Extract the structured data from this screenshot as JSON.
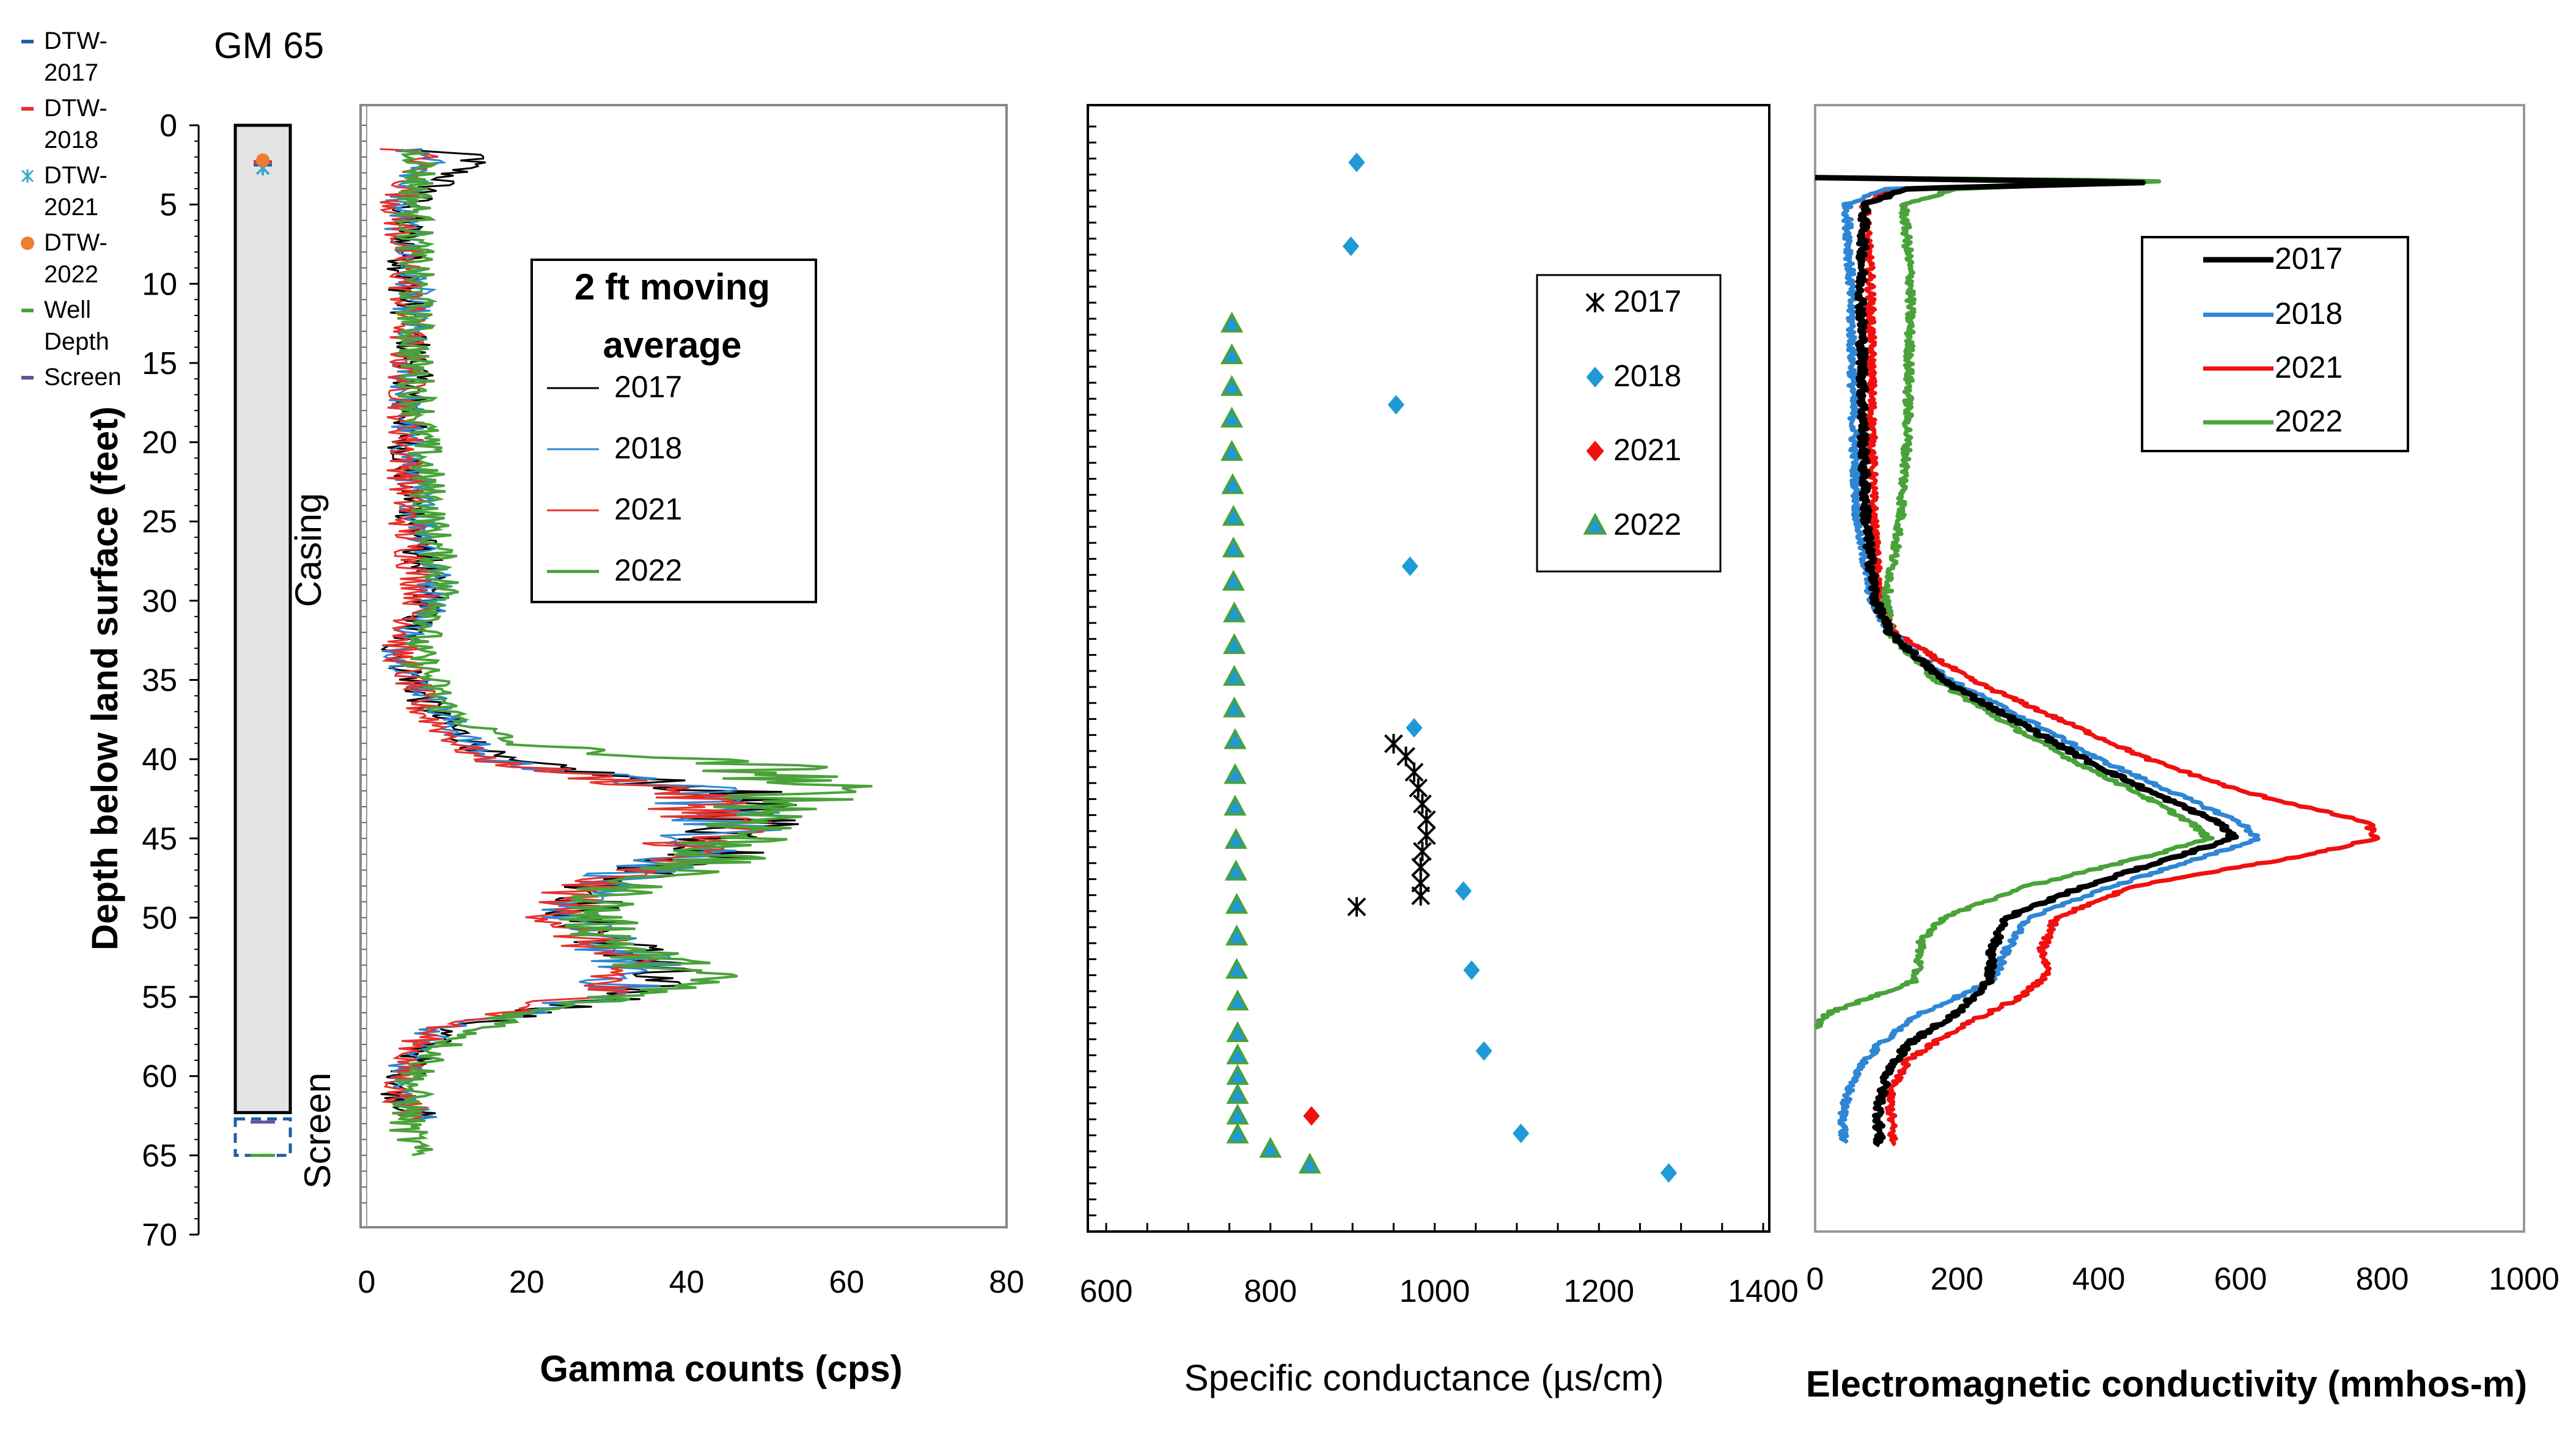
{
  "chart_data": [
    {
      "type": "well-diagram",
      "title": "GM 65",
      "ylabel": "Depth below land surface (feet)",
      "yticks": [
        "0",
        "5",
        "10",
        "15",
        "20",
        "25",
        "30",
        "35",
        "40",
        "45",
        "50",
        "55",
        "60",
        "65",
        "70"
      ],
      "ylim": [
        0,
        70
      ],
      "casing_label": "Casing",
      "screen_label": "Screen",
      "casing_depth": [
        0,
        62.3
      ],
      "screen_depth": [
        62.7,
        65
      ],
      "well_depth": 65,
      "legend": [
        {
          "label": "DTW-\n2017",
          "color": "#1f5fa8",
          "marker": "dash"
        },
        {
          "label": "DTW-\n2018",
          "color": "#e8302a",
          "marker": "dash"
        },
        {
          "label": "DTW-\n2021",
          "color": "#3aa6c8",
          "marker": "asterisk"
        },
        {
          "label": "DTW-\n2022",
          "color": "#ee7d31",
          "marker": "circle"
        },
        {
          "label": "Well\nDepth",
          "color": "#4aa23a",
          "marker": "dash"
        },
        {
          "label": "Screen",
          "color": "#6b4f9a",
          "marker": "dash"
        }
      ],
      "dtw": [
        {
          "year": "2017",
          "depth": 2.5
        },
        {
          "year": "2018",
          "depth": 2.3
        },
        {
          "year": "2021",
          "depth": 2.7
        },
        {
          "year": "2022",
          "depth": 2.4
        }
      ]
    },
    {
      "type": "line",
      "xlabel": "Gamma counts (cps)",
      "xlim": [
        0,
        80
      ],
      "xticks": [
        "0",
        "20",
        "40",
        "60",
        "80"
      ],
      "legend_title": "2 ft moving\naverage",
      "series": [
        {
          "name": "2017",
          "color": "#000000",
          "profile": [
            [
              1.5,
              6
            ],
            [
              2,
              14
            ],
            [
              5,
              5
            ],
            [
              10,
              5
            ],
            [
              15,
              6
            ],
            [
              20,
              5
            ],
            [
              25,
              6
            ],
            [
              30,
              8
            ],
            [
              33,
              4
            ],
            [
              37,
              8
            ],
            [
              40,
              16
            ],
            [
              42,
              44
            ],
            [
              44,
              48
            ],
            [
              46,
              44
            ],
            [
              48,
              30
            ],
            [
              50,
              26
            ],
            [
              53,
              36
            ],
            [
              55,
              32
            ],
            [
              57,
              10
            ],
            [
              59,
              6
            ],
            [
              61,
              4
            ],
            [
              62.8,
              7
            ]
          ]
        },
        {
          "name": "2018",
          "color": "#2e86d4",
          "profile": [
            [
              1.5,
              5
            ],
            [
              2,
              8
            ],
            [
              5,
              4
            ],
            [
              10,
              6
            ],
            [
              15,
              5
            ],
            [
              20,
              5
            ],
            [
              25,
              7
            ],
            [
              30,
              9
            ],
            [
              33,
              4
            ],
            [
              37,
              9
            ],
            [
              40,
              15
            ],
            [
              42,
              42
            ],
            [
              44,
              46
            ],
            [
              46,
              42
            ],
            [
              48,
              28
            ],
            [
              50,
              25
            ],
            [
              53,
              34
            ],
            [
              55,
              30
            ],
            [
              57,
              9
            ],
            [
              59,
              5
            ],
            [
              61,
              4
            ],
            [
              62.8,
              7
            ]
          ]
        },
        {
          "name": "2021",
          "color": "#e8302a",
          "profile": [
            [
              1.5,
              4
            ],
            [
              2,
              7
            ],
            [
              5,
              4
            ],
            [
              10,
              5
            ],
            [
              15,
              5
            ],
            [
              20,
              5
            ],
            [
              25,
              5
            ],
            [
              30,
              7
            ],
            [
              33,
              4
            ],
            [
              37,
              7
            ],
            [
              40,
              14
            ],
            [
              42,
              40
            ],
            [
              44,
              45
            ],
            [
              46,
              40
            ],
            [
              48,
              27
            ],
            [
              50,
              24
            ],
            [
              53,
              32
            ],
            [
              55,
              28
            ],
            [
              57,
              8
            ],
            [
              59,
              5
            ],
            [
              61,
              4
            ],
            [
              62.8,
              6
            ]
          ]
        },
        {
          "name": "2022",
          "color": "#4aa23a",
          "profile": [
            [
              1.5,
              5
            ],
            [
              2,
              7
            ],
            [
              5,
              6
            ],
            [
              10,
              6
            ],
            [
              15,
              6
            ],
            [
              20,
              7
            ],
            [
              25,
              8
            ],
            [
              30,
              10
            ],
            [
              33,
              6
            ],
            [
              37,
              10
            ],
            [
              39,
              18
            ],
            [
              40.5,
              50
            ],
            [
              42,
              55
            ],
            [
              44,
              50
            ],
            [
              46,
              44
            ],
            [
              48,
              32
            ],
            [
              50,
              28
            ],
            [
              52,
              33
            ],
            [
              54,
              42
            ],
            [
              56,
              20
            ],
            [
              58,
              10
            ],
            [
              60,
              6
            ],
            [
              63,
              5
            ],
            [
              65,
              6
            ]
          ]
        }
      ]
    },
    {
      "type": "scatter",
      "xlabel": "Specific conductance (µs/cm)",
      "xlim": [
        600,
        1400
      ],
      "xticks": [
        "600",
        "800",
        "1000",
        "1200",
        "1400"
      ],
      "ylim": [
        -1,
        70
      ],
      "series": [
        {
          "name": "2017",
          "marker": "asterisk",
          "color": "#000000",
          "points": [
            [
              950,
              39.2
            ],
            [
              965,
              40
            ],
            [
              975,
              41
            ],
            [
              980,
              42
            ],
            [
              985,
              43
            ],
            [
              990,
              44
            ],
            [
              990,
              45
            ],
            [
              985,
              46
            ],
            [
              983,
              47
            ],
            [
              983,
              48
            ],
            [
              983,
              48.8
            ],
            [
              905,
              49.5
            ]
          ]
        },
        {
          "name": "2018",
          "marker": "diamond",
          "color": "#1f9ad6",
          "points": [
            [
              905,
              2.5
            ],
            [
              898,
              7.8
            ],
            [
              953,
              17.8
            ],
            [
              970,
              28
            ],
            [
              975,
              38.2
            ],
            [
              1035,
              48.5
            ],
            [
              1045,
              53.5
            ],
            [
              1060,
              58.6
            ],
            [
              1105,
              63.8
            ],
            [
              1285,
              66.3
            ]
          ]
        },
        {
          "name": "2021",
          "marker": "diamond",
          "color": "#f01010",
          "points": [
            [
              850,
              62.7
            ]
          ]
        },
        {
          "name": "2022",
          "marker": "triangle",
          "color": "#4aa23a",
          "points": [
            [
              753,
              12.7
            ],
            [
              753,
              14.7
            ],
            [
              753,
              16.7
            ],
            [
              753,
              18.7
            ],
            [
              753,
              20.8
            ],
            [
              754,
              22.9
            ],
            [
              755,
              24.9
            ],
            [
              755,
              26.9
            ],
            [
              755,
              29
            ],
            [
              756,
              31
            ],
            [
              756,
              33
            ],
            [
              756,
              35
            ],
            [
              756,
              37
            ],
            [
              757,
              39
            ],
            [
              757,
              41.2
            ],
            [
              757,
              43.2
            ],
            [
              758,
              45.3
            ],
            [
              758,
              47.3
            ],
            [
              759,
              49.4
            ],
            [
              759,
              51.4
            ],
            [
              759,
              53.5
            ],
            [
              760,
              55.5
            ],
            [
              760,
              57.5
            ],
            [
              760,
              58.9
            ],
            [
              760,
              60.2
            ],
            [
              760,
              61.4
            ],
            [
              760,
              62.7
            ],
            [
              760,
              63.9
            ],
            [
              800,
              64.8
            ],
            [
              848,
              65.8
            ]
          ]
        }
      ]
    },
    {
      "type": "line",
      "xlabel": "Electromagnetic conductivity (mmhos-m)",
      "xlim": [
        0,
        1000
      ],
      "xticks": [
        "0",
        "200",
        "400",
        "600",
        "800",
        "1000"
      ],
      "series": [
        {
          "name": "2017",
          "color": "#000000",
          "width": 9,
          "profile": [
            [
              3.3,
              0
            ],
            [
              3.6,
              480
            ],
            [
              4.0,
              130
            ],
            [
              5.0,
              70
            ],
            [
              10,
              65
            ],
            [
              20,
              68
            ],
            [
              25,
              72
            ],
            [
              30,
              85
            ],
            [
              32,
              105
            ],
            [
              35,
              180
            ],
            [
              38,
              300
            ],
            [
              40,
              380
            ],
            [
              42,
              470
            ],
            [
              44,
              570
            ],
            [
              45,
              590
            ],
            [
              46,
              520
            ],
            [
              48,
              380
            ],
            [
              50,
              270
            ],
            [
              52,
              250
            ],
            [
              54,
              245
            ],
            [
              56,
              200
            ],
            [
              58,
              130
            ],
            [
              60,
              100
            ],
            [
              62,
              90
            ],
            [
              64.4,
              90
            ]
          ]
        },
        {
          "name": "2018",
          "color": "#2e86d4",
          "width": 7,
          "profile": [
            [
              3.3,
              0
            ],
            [
              3.6,
              470
            ],
            [
              4.0,
              100
            ],
            [
              5.0,
              45
            ],
            [
              10,
              50
            ],
            [
              20,
              55
            ],
            [
              25,
              60
            ],
            [
              30,
              80
            ],
            [
              32,
              105
            ],
            [
              35,
              190
            ],
            [
              38,
              320
            ],
            [
              40,
              400
            ],
            [
              42,
              500
            ],
            [
              44,
              600
            ],
            [
              45,
              625
            ],
            [
              46,
              560
            ],
            [
              48,
              420
            ],
            [
              50,
              300
            ],
            [
              52,
              270
            ],
            [
              54,
              250
            ],
            [
              56,
              150
            ],
            [
              58,
              90
            ],
            [
              60,
              55
            ],
            [
              62,
              40
            ],
            [
              64.2,
              40
            ]
          ]
        },
        {
          "name": "2021",
          "color": "#f01010",
          "width": 7,
          "profile": [
            [
              3.3,
              0
            ],
            [
              3.6,
              460
            ],
            [
              4.0,
              110
            ],
            [
              5.0,
              70
            ],
            [
              10,
              78
            ],
            [
              20,
              80
            ],
            [
              25,
              82
            ],
            [
              30,
              90
            ],
            [
              32,
              110
            ],
            [
              35,
              220
            ],
            [
              38,
              370
            ],
            [
              40,
              470
            ],
            [
              42,
              600
            ],
            [
              44,
              780
            ],
            [
              45,
              790
            ],
            [
              46,
              700
            ],
            [
              48,
              450
            ],
            [
              50,
              340
            ],
            [
              52,
              320
            ],
            [
              53.5,
              330
            ],
            [
              55,
              290
            ],
            [
              57,
              200
            ],
            [
              59,
              130
            ],
            [
              61,
              105
            ],
            [
              64.4,
              110
            ]
          ]
        },
        {
          "name": "2022",
          "color": "#4aa23a",
          "width": 7,
          "profile": [
            [
              3.3,
              0
            ],
            [
              3.5,
              510
            ],
            [
              4.0,
              200
            ],
            [
              5.0,
              125
            ],
            [
              10,
              135
            ],
            [
              20,
              130
            ],
            [
              25,
              120
            ],
            [
              30,
              100
            ],
            [
              32,
              105
            ],
            [
              35,
              170
            ],
            [
              38,
              280
            ],
            [
              40,
              360
            ],
            [
              42,
              450
            ],
            [
              44,
              530
            ],
            [
              45,
              555
            ],
            [
              46,
              480
            ],
            [
              48,
              300
            ],
            [
              50,
              180
            ],
            [
              51.5,
              150
            ],
            [
              53,
              145
            ],
            [
              54,
              140
            ],
            [
              55,
              80
            ],
            [
              56,
              20
            ],
            [
              57,
              0
            ]
          ]
        }
      ]
    }
  ]
}
